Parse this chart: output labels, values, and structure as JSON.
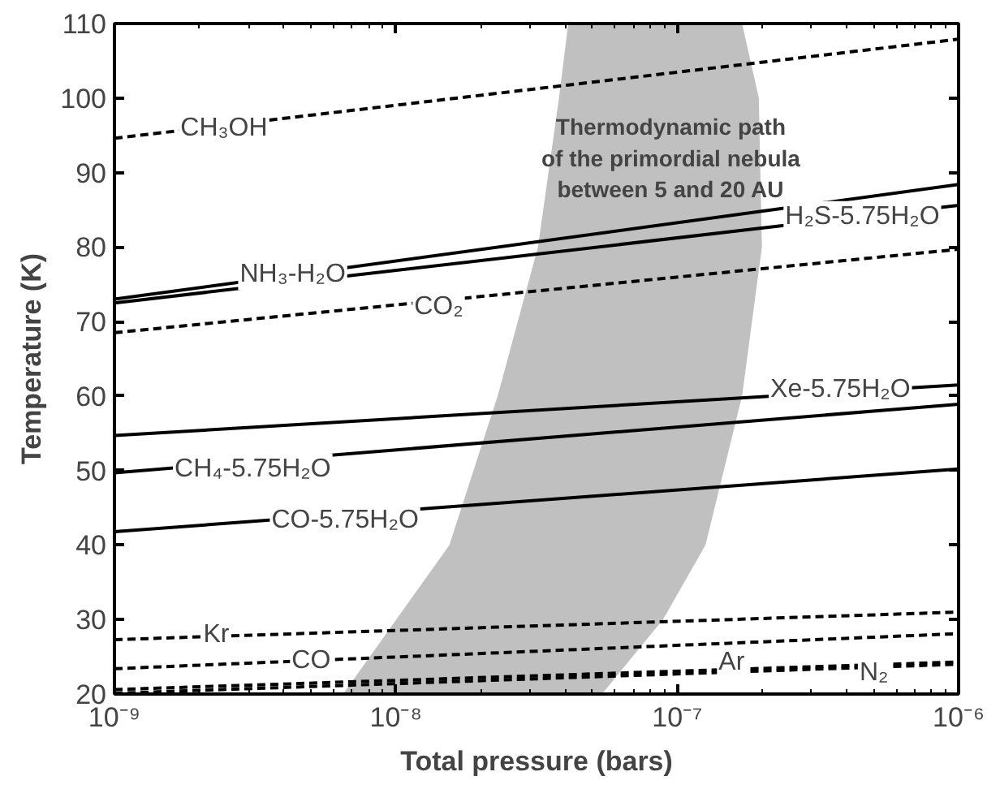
{
  "chart_data": {
    "type": "line",
    "xlabel": "Total pressure (bars)",
    "ylabel": "Temperature (K)",
    "log": "x",
    "xlim": [
      1e-09,
      1e-06
    ],
    "ylim": [
      20,
      110
    ],
    "xticks": [
      {
        "value": 1e-09,
        "label": "10⁻⁹"
      },
      {
        "value": 1e-08,
        "label": "10⁻⁸"
      },
      {
        "value": 1e-07,
        "label": "10⁻⁷"
      },
      {
        "value": 1e-06,
        "label": "10⁻⁶"
      }
    ],
    "yticks": [
      20,
      30,
      40,
      50,
      60,
      70,
      80,
      90,
      100,
      110
    ],
    "grid": false,
    "series": [
      {
        "type": "area",
        "color": "#c0c0c0",
        "x": [
          6.5e-09,
          1.55e-08,
          2.3e-08,
          3.2e-08,
          3.8e-08,
          4.1e-08,
          1.7e-07,
          1.95e-07,
          2e-07,
          1.7e-07,
          1.26e-07,
          8.9e-08,
          5.4e-08,
          3.2e-08
        ],
        "values": [
          20,
          40,
          60,
          80,
          100,
          110,
          110,
          100,
          80,
          60,
          40,
          30,
          20,
          20
        ]
      },
      {
        "color": "#000000",
        "line_style": "dashed",
        "x": [
          1e-09,
          1e-06
        ],
        "values": [
          94.6,
          107.9
        ]
      },
      {
        "color": "#000000",
        "line_style": "solid",
        "x": [
          1e-09,
          1e-06
        ],
        "values": [
          73.0,
          88.4
        ]
      },
      {
        "color": "#000000",
        "line_style": "solid",
        "x": [
          1e-09,
          1e-06
        ],
        "values": [
          72.5,
          85.6
        ]
      },
      {
        "color": "#000000",
        "line_style": "dashed",
        "x": [
          1e-09,
          1e-06
        ],
        "values": [
          68.5,
          79.7
        ]
      },
      {
        "color": "#000000",
        "line_style": "solid",
        "x": [
          1e-09,
          1e-06
        ],
        "values": [
          54.7,
          61.5
        ]
      },
      {
        "color": "#000000",
        "line_style": "solid",
        "x": [
          1e-09,
          1e-06
        ],
        "values": [
          49.7,
          58.9
        ]
      },
      {
        "color": "#000000",
        "line_style": "solid",
        "x": [
          1e-09,
          1e-06
        ],
        "values": [
          41.8,
          50.2
        ]
      },
      {
        "color": "#000000",
        "line_style": "dashed",
        "x": [
          1e-09,
          1e-06
        ],
        "values": [
          27.3,
          31.0
        ]
      },
      {
        "color": "#000000",
        "line_style": "dashed",
        "x": [
          1e-09,
          1e-06
        ],
        "values": [
          23.4,
          28.1
        ]
      },
      {
        "color": "#000000",
        "line_style": "dashed",
        "x": [
          1e-09,
          1e-06
        ],
        "values": [
          20.6,
          24.3
        ]
      },
      {
        "color": "#000000",
        "line_style": "dashed",
        "x": [
          1e-09,
          1e-06
        ],
        "values": [
          20.1,
          24.0
        ]
      }
    ],
    "annotations": [
      "Thermodynamic path\nof the primordial nebula\nbetween 5 and 20 AU",
      {
        "text": "CH₃OH",
        "x": 2.45e-09,
        "y": 95.9
      },
      {
        "text": "NH₃-H₂O",
        "x": 4.3e-09,
        "y": 76.3
      },
      {
        "text": "CO₂",
        "x": 1.42e-08,
        "y": 72.0
      },
      {
        "text": "H₂S-5.75H₂O",
        "x": 4.55e-07,
        "y": 84.1
      },
      {
        "text": "Xe-5.75H₂O",
        "x": 3.8e-07,
        "y": 60.9
      },
      {
        "text": "CH₄-5.75H₂O",
        "x": 3.1e-09,
        "y": 50.2
      },
      {
        "text": "CO-5.75H₂O",
        "x": 6.6e-09,
        "y": 43.3
      },
      {
        "text": "Kr",
        "x": 2.3e-09,
        "y": 27.9
      },
      {
        "text": "CO",
        "x": 5e-09,
        "y": 24.5
      },
      {
        "text": "Ar",
        "x": 1.56e-07,
        "y": 24.3
      },
      {
        "text": "N₂",
        "x": 5e-07,
        "y": 22.8
      }
    ]
  }
}
